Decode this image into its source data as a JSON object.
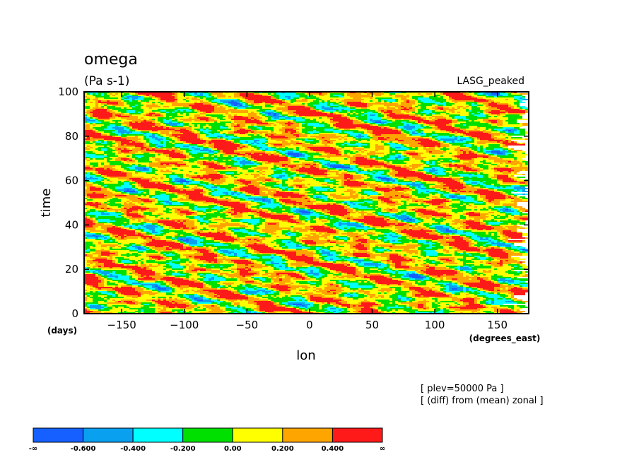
{
  "chart_data": {
    "type": "heatmap",
    "title": "omega",
    "units": "(Pa s-1)",
    "dataset": "LASG_peaked",
    "xlabel": "lon",
    "xunits": "(degrees_east)",
    "ylabel": "time",
    "yunits": "(days)",
    "xlim": [
      -180,
      175
    ],
    "ylim": [
      0,
      100
    ],
    "xticks": [
      -150,
      -100,
      -50,
      0,
      50,
      100,
      150
    ],
    "yticks": [
      0,
      20,
      40,
      60,
      80,
      100
    ],
    "notes": [
      "[ plev=50000 Pa ]",
      "[ (diff) from (mean) zonal ]"
    ],
    "colorbar": {
      "colors": [
        "#1560ff",
        "#0aa0f0",
        "#00ffff",
        "#00e000",
        "#ffff00",
        "#ffa500",
        "#ff1a1a"
      ],
      "labels": [
        "-∞",
        "-0.600",
        "-0.400",
        "-0.200",
        "0.00",
        "0.200",
        "0.400",
        "∞"
      ]
    }
  }
}
